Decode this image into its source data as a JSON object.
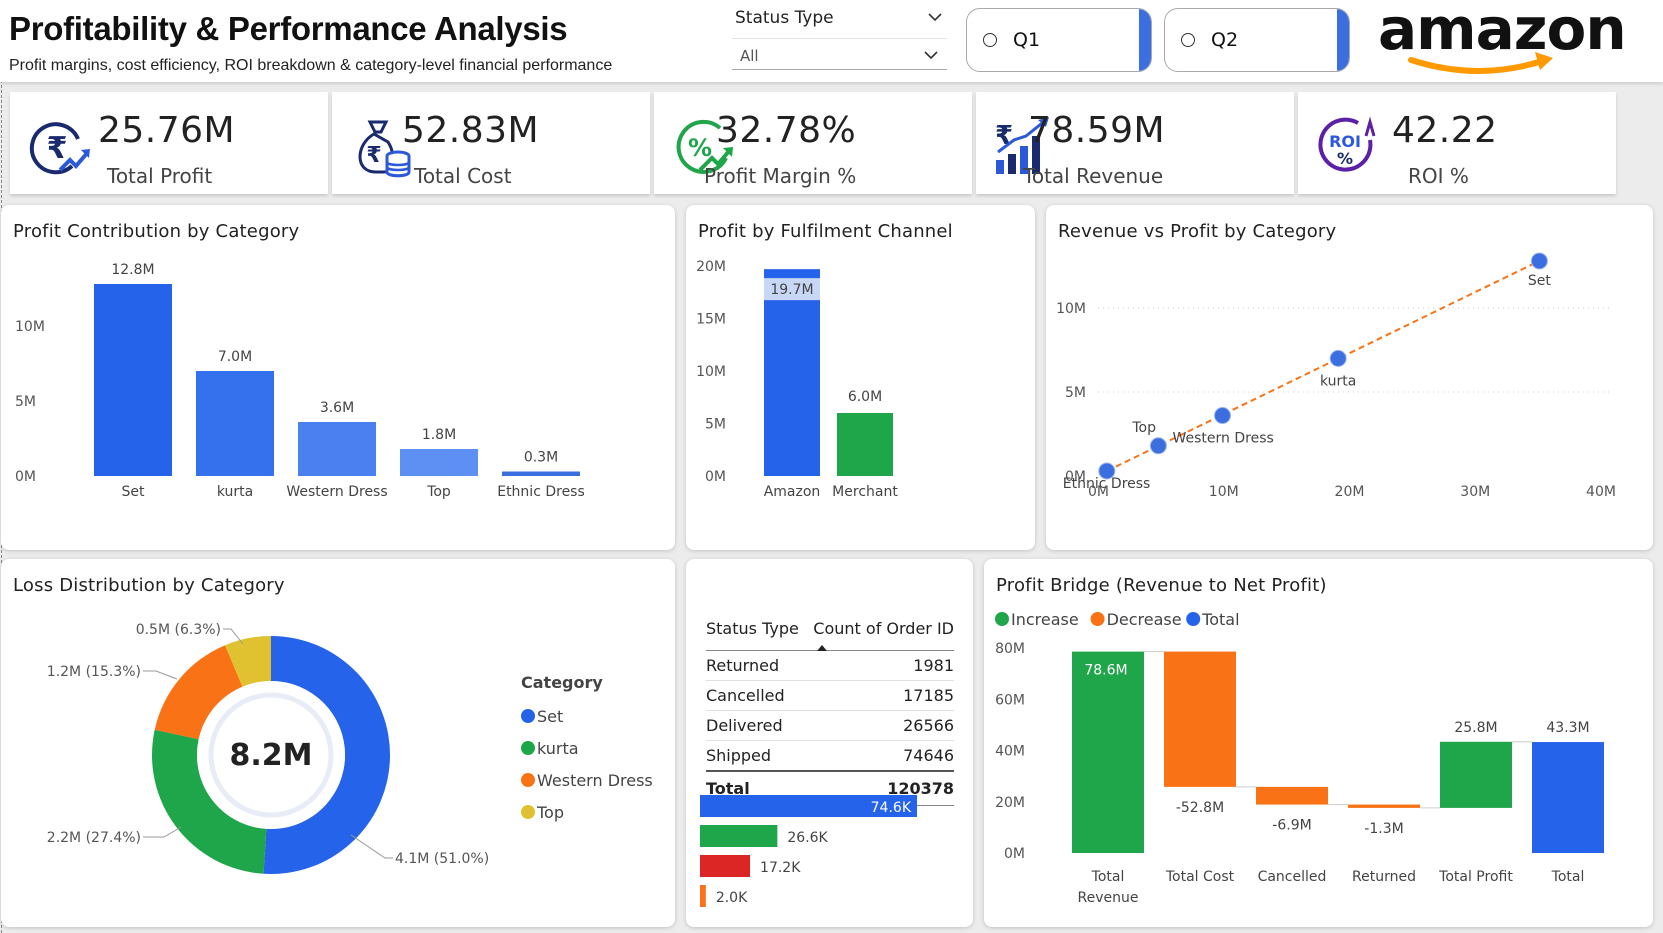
{
  "header": {
    "title": "Profitability & Performance Analysis",
    "subtitle": "Profit margins, cost efficiency, ROI breakdown & category-level financial performance",
    "slicer": {
      "label": "Status Type",
      "value": "All"
    },
    "quarter_buttons": [
      "Q1",
      "Q2"
    ],
    "logo_text": "amazon"
  },
  "kpis": [
    {
      "value": "25.76M",
      "label": "Total Profit",
      "icon": "rupee-growth-icon"
    },
    {
      "value": "52.83M",
      "label": "Total Cost",
      "icon": "money-bag-icon"
    },
    {
      "value": "32.78%",
      "label": "Profit Margin %",
      "icon": "percent-growth-icon"
    },
    {
      "value": "78.59M",
      "label": "Total Revenue",
      "icon": "rupee-bar-chart-icon"
    },
    {
      "value": "42.22",
      "label": "ROI %",
      "icon": "roi-icon",
      "icon_text": [
        "ROI",
        "%"
      ]
    }
  ],
  "colors": {
    "blue": "#2563eb",
    "green": "#1fa54a",
    "orange": "#f97316",
    "red": "#dc2626",
    "yellow": "#e0c230",
    "brand_orange": "#ff9900"
  },
  "profit_contribution": {
    "title": "Profit Contribution by Category",
    "chart_data": {
      "type": "bar",
      "categories": [
        "Set",
        "kurta",
        "Western Dress",
        "Top",
        "Ethnic Dress"
      ],
      "values": [
        12.8,
        7.0,
        3.6,
        1.8,
        0.3
      ],
      "data_labels": [
        "12.8M",
        "7.0M",
        "3.6M",
        "1.8M",
        "0.3M"
      ],
      "yticks": [
        "0M",
        "5M",
        "10M"
      ],
      "ylim": [
        0,
        14.2
      ]
    }
  },
  "fulfilment": {
    "title": "Profit by Fulfilment Channel",
    "chart_data": {
      "type": "bar",
      "categories": [
        "Amazon",
        "Merchant"
      ],
      "values": [
        19.7,
        6.0
      ],
      "data_labels": [
        "19.7M",
        "6.0M"
      ],
      "yticks": [
        "0M",
        "5M",
        "10M",
        "15M",
        "20M"
      ],
      "ylim": [
        0,
        20
      ]
    }
  },
  "revenue_vs_profit": {
    "title": "Revenue vs Profit by Category",
    "chart_data": {
      "type": "scatter",
      "points": [
        {
          "label": "Set",
          "x": 35.1,
          "y": 12.8
        },
        {
          "label": "kurta",
          "x": 19.1,
          "y": 7.0
        },
        {
          "label": "Western Dress",
          "x": 9.9,
          "y": 3.6
        },
        {
          "label": "Top",
          "x": 4.8,
          "y": 1.8
        },
        {
          "label": "Ethnic Dress",
          "x": 0.7,
          "y": 0.3
        }
      ],
      "xticks": [
        "0M",
        "10M",
        "20M",
        "30M",
        "40M"
      ],
      "yticks": [
        "0M",
        "5M",
        "10M"
      ],
      "xlim": [
        0,
        40
      ],
      "ylim": [
        0,
        15
      ],
      "trendline": true
    }
  },
  "loss_distribution": {
    "title": "Loss Distribution by Category",
    "center_value": "8.2M",
    "legend_title": "Category",
    "chart_data": {
      "type": "pie",
      "slices": [
        {
          "name": "Set",
          "value": 4.1,
          "label": "4.1M (51.0%)",
          "pct": 51.0
        },
        {
          "name": "kurta",
          "value": 2.2,
          "label": "2.2M (27.4%)",
          "pct": 27.4
        },
        {
          "name": "Western Dress",
          "value": 1.2,
          "label": "1.2M (15.3%)",
          "pct": 15.3
        },
        {
          "name": "Top",
          "value": 0.5,
          "label": "0.5M (6.3%)",
          "pct": 6.3
        }
      ]
    }
  },
  "status_table": {
    "headers": [
      "Status Type",
      "Count of Order ID"
    ],
    "rows": [
      {
        "status": "Returned",
        "count": "1981"
      },
      {
        "status": "Cancelled",
        "count": "17185"
      },
      {
        "status": "Delivered",
        "count": "26566"
      },
      {
        "status": "Shipped",
        "count": "74646"
      }
    ],
    "total_label": "Total",
    "total_value": "120378",
    "chart_data": {
      "type": "bar",
      "orientation": "horizontal",
      "values": [
        74.6,
        26.6,
        17.2,
        2.0
      ],
      "data_labels": [
        "74.6K",
        "26.6K",
        "17.2K",
        "2.0K"
      ],
      "colors": [
        "#2563eb",
        "#1fa54a",
        "#dc2626",
        "#f97316"
      ]
    }
  },
  "profit_bridge": {
    "title": "Profit Bridge (Revenue to Net Profit)",
    "legend": [
      {
        "name": "Increase",
        "color": "#1fa54a"
      },
      {
        "name": "Decrease",
        "color": "#f97316"
      },
      {
        "name": "Total",
        "color": "#2563eb"
      }
    ],
    "chart_data": {
      "type": "bar",
      "subtype": "waterfall",
      "categories": [
        "Total Revenue",
        "Total Cost",
        "Cancelled",
        "Returned",
        "Total Profit",
        "Total"
      ],
      "steps": [
        {
          "kind": "increase",
          "value": 78.6,
          "label": "78.6M"
        },
        {
          "kind": "decrease",
          "value": -52.8,
          "label": "-52.8M"
        },
        {
          "kind": "decrease",
          "value": -6.9,
          "label": "-6.9M"
        },
        {
          "kind": "decrease",
          "value": -1.3,
          "label": "-1.3M"
        },
        {
          "kind": "increase",
          "value": 25.8,
          "label": "25.8M"
        },
        {
          "kind": "total",
          "value": 43.3,
          "label": "43.3M"
        }
      ],
      "yticks": [
        "0M",
        "20M",
        "40M",
        "60M",
        "80M"
      ],
      "ylim": [
        0,
        80
      ]
    }
  }
}
